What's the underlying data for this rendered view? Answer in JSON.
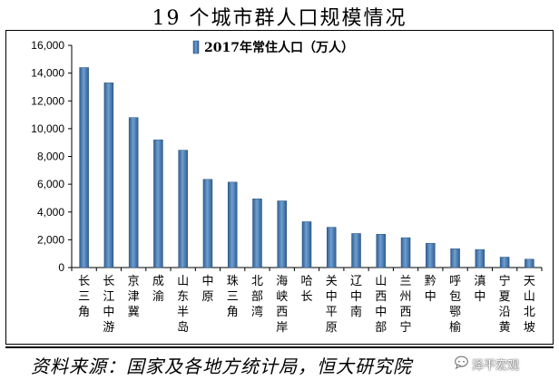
{
  "page": {
    "title": "19 个城市群人口规模情况",
    "source": "资料来源：国家及各地方统计局，恒大研究院",
    "watermark": "泽平宏观",
    "watermark_icon": "chat-bubble-icon"
  },
  "chart_data": {
    "type": "bar",
    "categories": [
      "长三角",
      "长江中游",
      "京津冀",
      "成渝",
      "山东半岛",
      "中原",
      "珠三角",
      "北部湾",
      "海峡西岸",
      "哈长",
      "关中平原",
      "辽中南",
      "山西中部",
      "兰州西宁",
      "黔中",
      "呼包鄂榆",
      "滇中",
      "宁夏沿黄",
      "天山北坡"
    ],
    "series": [
      {
        "name": "2017年常住人口（万人）",
        "values": [
          14400,
          13300,
          10800,
          9200,
          8450,
          6350,
          6150,
          4950,
          4800,
          3300,
          2900,
          2450,
          2400,
          2150,
          1750,
          1350,
          1300,
          750,
          600
        ]
      }
    ],
    "ylim": [
      0,
      16000
    ],
    "yticks": [
      0,
      2000,
      4000,
      6000,
      8000,
      10000,
      12000,
      14000,
      16000
    ],
    "ytick_labels": [
      "0",
      "2,000",
      "4,000",
      "6,000",
      "8,000",
      "10,000",
      "12,000",
      "14,000",
      "16,000"
    ],
    "xlabel": "",
    "ylabel": "",
    "legend_position": "top-center",
    "grid": false,
    "bar_color": "#4f81bd"
  }
}
